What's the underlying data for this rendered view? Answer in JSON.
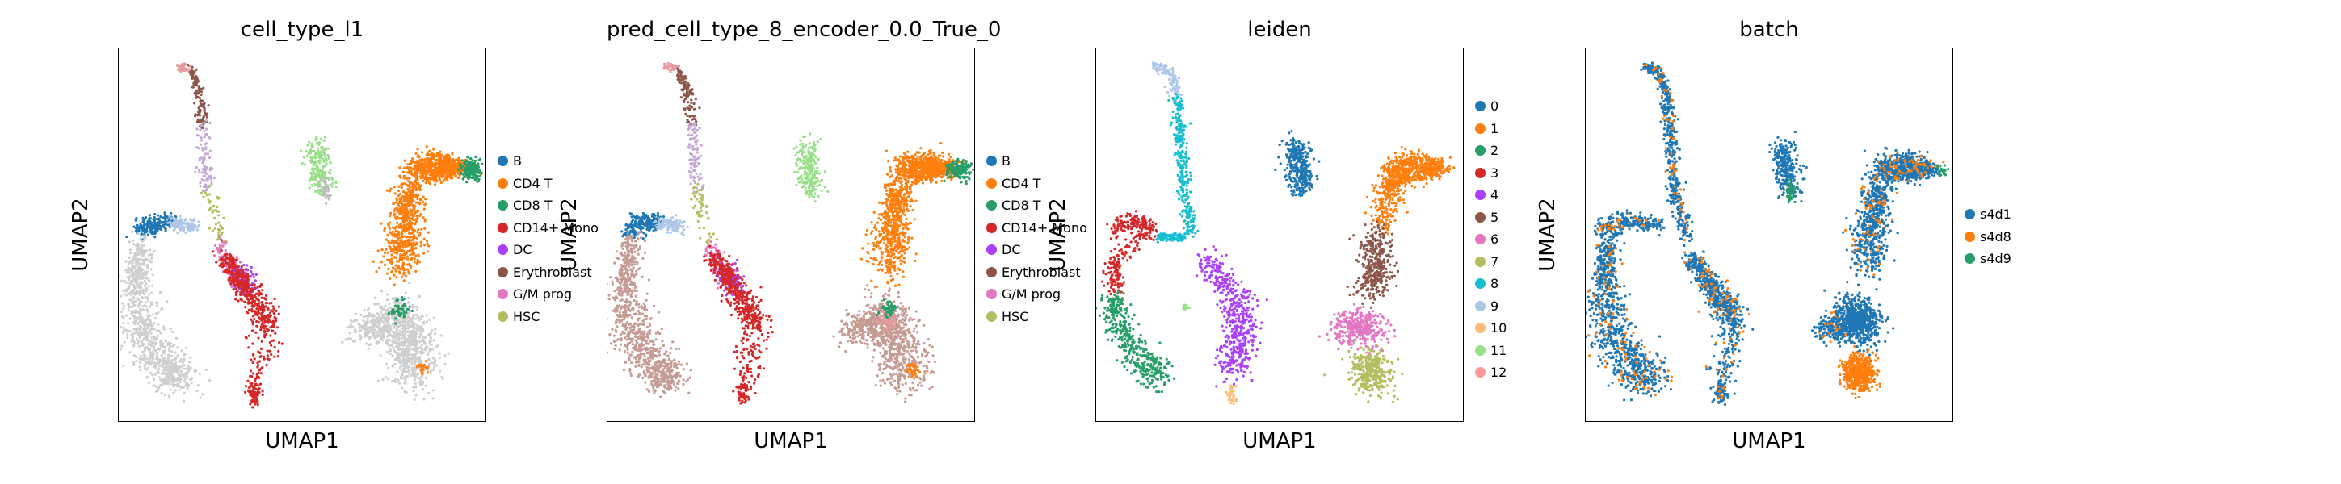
{
  "figure": {
    "panels": [
      {
        "id": "cell_type_l1",
        "title": "cell_type_l1",
        "xlabel": "UMAP1",
        "ylabel": "UMAP2",
        "legend": [
          {
            "label": "B",
            "color": "#1f77b4"
          },
          {
            "label": "CD4 T",
            "color": "#ff7f0e"
          },
          {
            "label": "CD8 T",
            "color": "#279e68"
          },
          {
            "label": "CD14+ Mono",
            "color": "#d62728"
          },
          {
            "label": "DC",
            "color": "#aa40fc"
          },
          {
            "label": "Erythroblast",
            "color": "#8c564b"
          },
          {
            "label": "G/M prog",
            "color": "#e377c2"
          },
          {
            "label": "HSC",
            "color": "#b5bd61"
          }
        ]
      },
      {
        "id": "pred",
        "title": "pred_cell_type_8_encoder_0.0_True_0",
        "xlabel": "UMAP1",
        "ylabel": "UMAP2",
        "legend": [
          {
            "label": "B",
            "color": "#1f77b4"
          },
          {
            "label": "CD4 T",
            "color": "#ff7f0e"
          },
          {
            "label": "CD8 T",
            "color": "#279e68"
          },
          {
            "label": "CD14+ Mono",
            "color": "#d62728"
          },
          {
            "label": "DC",
            "color": "#aa40fc"
          },
          {
            "label": "Erythroblast",
            "color": "#8c564b"
          },
          {
            "label": "G/M prog",
            "color": "#e377c2"
          },
          {
            "label": "HSC",
            "color": "#b5bd61"
          }
        ]
      },
      {
        "id": "leiden",
        "title": "leiden",
        "xlabel": "UMAP1",
        "ylabel": "UMAP2",
        "legend": [
          {
            "label": "0",
            "color": "#1f77b4"
          },
          {
            "label": "1",
            "color": "#ff7f0e"
          },
          {
            "label": "2",
            "color": "#279e68"
          },
          {
            "label": "3",
            "color": "#d62728"
          },
          {
            "label": "4",
            "color": "#aa40fc"
          },
          {
            "label": "5",
            "color": "#8c564b"
          },
          {
            "label": "6",
            "color": "#e377c2"
          },
          {
            "label": "7",
            "color": "#b5bd61"
          },
          {
            "label": "8",
            "color": "#17becf"
          },
          {
            "label": "9",
            "color": "#aec7e8"
          },
          {
            "label": "10",
            "color": "#ffbb78"
          },
          {
            "label": "11",
            "color": "#98df8a"
          },
          {
            "label": "12",
            "color": "#ff9896"
          }
        ]
      },
      {
        "id": "batch",
        "title": "batch",
        "xlabel": "UMAP1",
        "ylabel": "UMAP2",
        "legend": [
          {
            "label": "s4d1",
            "color": "#1f77b4"
          },
          {
            "label": "s4d8",
            "color": "#ff7f0e"
          },
          {
            "label": "s4d9",
            "color": "#279e68"
          }
        ]
      }
    ]
  },
  "chart_data": [
    {
      "type": "scatter",
      "title": "cell_type_l1",
      "xlabel": "UMAP1",
      "ylabel": "UMAP2",
      "grid": false,
      "legend_position": "right",
      "categories": [
        "B",
        "CD4 T",
        "CD8 T",
        "CD14+ Mono",
        "DC",
        "Erythroblast",
        "G/M prog",
        "HSC"
      ],
      "note_colors": {
        "unlabeled": "#d3d3d3"
      }
    },
    {
      "type": "scatter",
      "title": "pred_cell_type_8_encoder_0.0_True_0",
      "xlabel": "UMAP1",
      "ylabel": "UMAP2",
      "grid": false,
      "legend_position": "right",
      "categories": [
        "B",
        "CD4 T",
        "CD8 T",
        "CD14+ Mono",
        "DC",
        "Erythroblast",
        "G/M prog",
        "HSC"
      ]
    },
    {
      "type": "scatter",
      "title": "leiden",
      "xlabel": "UMAP1",
      "ylabel": "UMAP2",
      "grid": false,
      "legend_position": "right",
      "categories": [
        "0",
        "1",
        "2",
        "3",
        "4",
        "5",
        "6",
        "7",
        "8",
        "9",
        "10",
        "11",
        "12"
      ]
    },
    {
      "type": "scatter",
      "title": "batch",
      "xlabel": "UMAP1",
      "ylabel": "UMAP2",
      "grid": false,
      "legend_position": "right",
      "categories": [
        "s4d1",
        "s4d8",
        "s4d9"
      ]
    }
  ]
}
